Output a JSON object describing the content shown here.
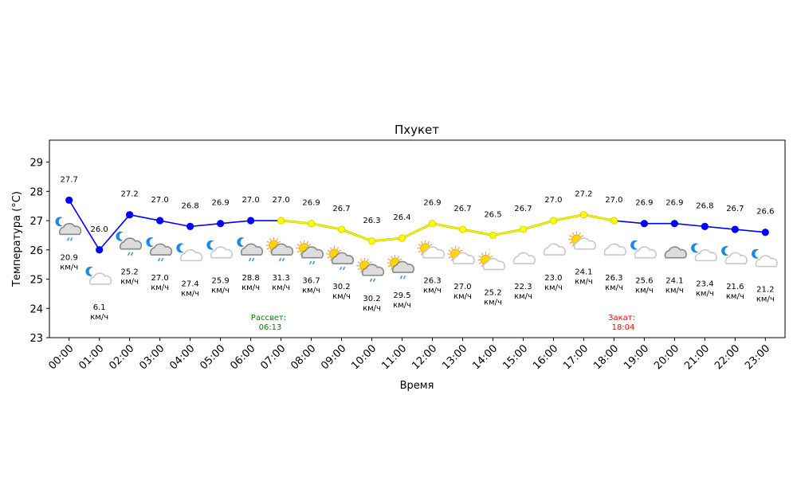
{
  "chart_data": {
    "type": "line",
    "title": "Пхукет",
    "xlabel": "Время",
    "ylabel": "Температура (°C)",
    "ylim": [
      23,
      29.75
    ],
    "yticks": [
      "23",
      "24",
      "25",
      "26",
      "27",
      "28",
      "29"
    ],
    "categories": [
      "00:00",
      "01:00",
      "02:00",
      "03:00",
      "04:00",
      "05:00",
      "06:00",
      "07:00",
      "08:00",
      "09:00",
      "10:00",
      "11:00",
      "12:00",
      "13:00",
      "14:00",
      "15:00",
      "16:00",
      "17:00",
      "18:00",
      "19:00",
      "20:00",
      "21:00",
      "22:00",
      "23:00"
    ],
    "temperatures": [
      27.7,
      26.0,
      27.2,
      27.0,
      26.8,
      26.9,
      27.0,
      27.0,
      26.9,
      26.7,
      26.3,
      26.4,
      26.9,
      26.7,
      26.5,
      26.7,
      27.0,
      27.2,
      27.0,
      26.9,
      26.9,
      26.8,
      26.7,
      26.6
    ],
    "temp_labels": [
      "27.7",
      "26.0",
      "27.2",
      "27.0",
      "26.8",
      "26.9",
      "27.0",
      "27.0",
      "26.9",
      "26.7",
      "26.3",
      "26.4",
      "26.9",
      "26.7",
      "26.5",
      "26.7",
      "27.0",
      "27.2",
      "27.0",
      "26.9",
      "26.9",
      "26.8",
      "26.7",
      "26.6"
    ],
    "wind_labels": [
      "20.9",
      "6.1",
      "25.2",
      "27.0",
      "27.4",
      "25.9",
      "28.8",
      "31.3",
      "36.7",
      "30.2",
      "30.2",
      "29.5",
      "26.3",
      "27.0",
      "25.2",
      "22.3",
      "23.0",
      "24.1",
      "26.3",
      "25.6",
      "24.1",
      "23.4",
      "21.6",
      "21.2"
    ],
    "wind_unit": "км/ч",
    "icons": [
      "moon-cloud-rain",
      "moon-cloud",
      "moon-cloud-rain",
      "moon-cloud-rain",
      "moon-cloud",
      "moon-cloud",
      "moon-cloud-rain",
      "sun-cloud-rain",
      "sun-cloud-rain",
      "sun-cloud-rain",
      "sun-cloud-rain",
      "sun-cloud-rain",
      "sun-cloud",
      "sun-cloud",
      "sun-cloud",
      "cloud",
      "cloud",
      "sun-cloud",
      "cloud",
      "moon-cloud",
      "cloud-dark",
      "moon-cloud",
      "moon-cloud",
      "moon-cloud"
    ],
    "day_range": [
      7,
      18
    ],
    "colors": {
      "night_line": "#0000ff",
      "day_marker": "#ffff00",
      "day_line": "#cccc00",
      "sunrise": "#008000",
      "sunset": "#ff0000",
      "moon": "#1e88e5",
      "sun": "#ffd700",
      "rain": "#4a90e2"
    },
    "sunrise": {
      "label": "Рассвет:",
      "time": "06:13"
    },
    "sunset": {
      "label": "Закат:",
      "time": "18:04"
    }
  }
}
